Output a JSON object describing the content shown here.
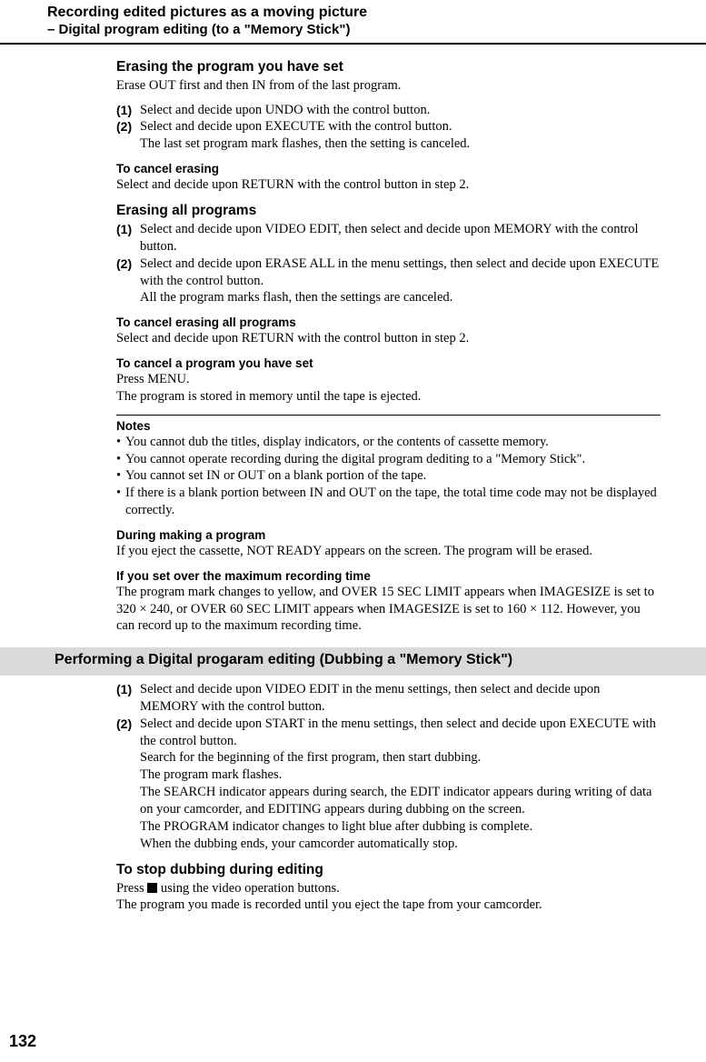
{
  "header": {
    "title": "Recording edited pictures as a moving picture",
    "subtitle": "– Digital program editing (to a \"Memory Stick\")"
  },
  "sections": {
    "erasing_program": {
      "heading": "Erasing the program you have set",
      "intro": "Erase OUT first and then IN from of the last program.",
      "step1_num": "(1)",
      "step1": "Select and decide upon UNDO with the control button.",
      "step2_num": "(2)",
      "step2": "Select and decide upon EXECUTE with the control button.",
      "step2_cont": "The last set program mark flashes, then the setting is canceled."
    },
    "cancel_erasing": {
      "heading": "To cancel erasing",
      "text": "Select and decide upon RETURN with the control button in step 2."
    },
    "erasing_all": {
      "heading": "Erasing all programs",
      "step1_num": "(1)",
      "step1": "Select and decide upon VIDEO EDIT, then select and decide upon MEMORY with the control button.",
      "step2_num": "(2)",
      "step2": "Select and decide upon ERASE ALL in the menu settings, then select and decide upon EXECUTE with the control button.",
      "step2_cont": "All the program marks flash, then the settings are canceled."
    },
    "cancel_all": {
      "heading": "To cancel erasing all programs",
      "text": "Select and decide upon RETURN with the control button in step 2."
    },
    "cancel_program_set": {
      "heading": "To cancel a program you have set",
      "text1": "Press MENU.",
      "text2": "The program is stored in memory until the tape is ejected."
    },
    "notes": {
      "heading": "Notes",
      "n1": "You cannot dub the titles, display indicators, or the contents of cassette memory.",
      "n2": "You cannot operate recording during the digital program dediting to a \"Memory Stick\".",
      "n3": "You cannot set IN or OUT on a blank portion of the tape.",
      "n4": "If there is a blank portion between IN and OUT on the tape, the total time code may not be displayed correctly."
    },
    "during_making": {
      "heading": "During making a program",
      "text": "If you eject the cassette, NOT READY appears on the screen. The program will be erased."
    },
    "over_max": {
      "heading": "If you set over the maximum recording time",
      "text": "The program mark changes to yellow, and OVER 15 SEC LIMIT appears when IMAGESIZE is set to 320 × 240, or OVER 60 SEC LIMIT appears when IMAGESIZE is set to 160 × 112. However, you can record up to the maximum recording time."
    },
    "performing": {
      "heading": "Performing a Digital progaram editing (Dubbing a \"Memory Stick\")",
      "step1_num": "(1)",
      "step1": "Select and decide upon VIDEO EDIT in the menu settings, then select and decide upon MEMORY with the control button.",
      "step2_num": "(2)",
      "step2": "Select and decide upon START in the menu settings, then select and decide upon EXECUTE with the control button.",
      "cont1": "Search for the beginning of the first program, then start dubbing.",
      "cont2": "The program mark flashes.",
      "cont3": "The SEARCH indicator appears during search, the EDIT indicator appears during writing of data on your camcorder, and EDITING appears during dubbing on the screen.",
      "cont4": "The PROGRAM indicator changes to light blue after dubbing is complete.",
      "cont5": "When the dubbing ends, your camcorder automatically stop."
    },
    "stop_dubbing": {
      "heading": "To stop dubbing during editing",
      "text1_pre": "Press ",
      "text1_post": " using the video operation buttons.",
      "text2": "The program you made is recorded until you eject the tape from your camcorder."
    }
  },
  "page_number": "132"
}
